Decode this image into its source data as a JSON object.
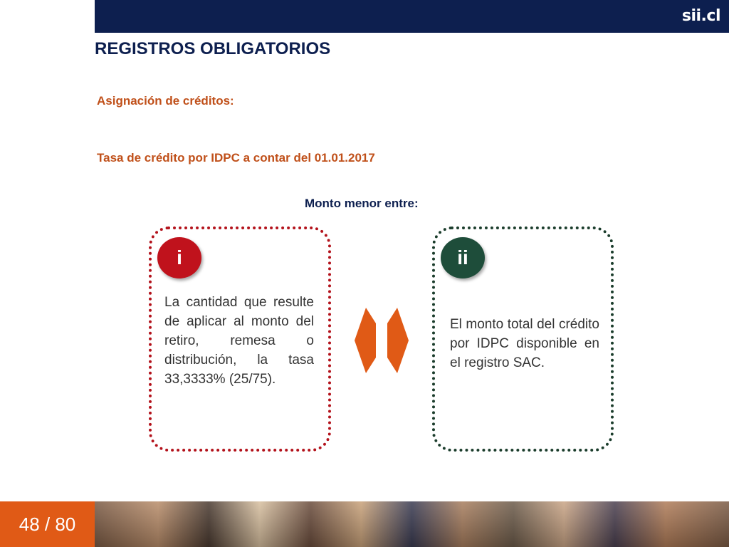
{
  "header": {
    "logo": "sii.cl"
  },
  "title": "REGISTROS OBLIGATORIOS",
  "subtitles": {
    "asignacion": "Asignación de créditos:",
    "tasa": "Tasa de crédito por IDPC a contar del 01.01.2017"
  },
  "monto_menor": "Monto menor entre:",
  "options": [
    {
      "badge": "i",
      "text": "La cantidad que resulte de aplicar al monto del retiro, remesa o distribución, la tasa 33,3333% (25/75)."
    },
    {
      "badge": "ii",
      "text": "El monto total del crédito por IDPC disponible en el registro SAC."
    }
  ],
  "footer": {
    "page_indicator": "48 / 80"
  },
  "colors": {
    "navy": "#0d1f4f",
    "accent_orange": "#c0501a",
    "red": "#c0121c",
    "green": "#1e4d3a",
    "footer_orange": "#e05a16"
  }
}
